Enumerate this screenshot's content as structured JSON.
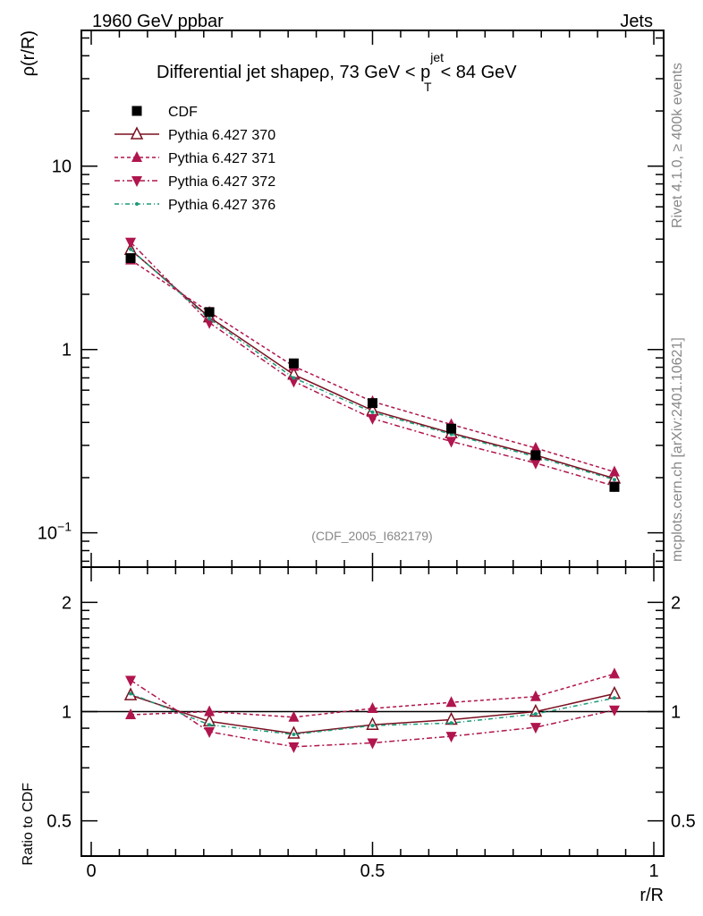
{
  "header": {
    "left": "1960 GeV ppbar",
    "right": "Jets"
  },
  "side_labels": {
    "rivet": "Rivet 4.1.0, ≥ 400k events",
    "mcplots": "mcplots.cern.ch [arXiv:2401.10621]"
  },
  "chart_data": {
    "type": "line",
    "title": {
      "prefix": "Differential jet shapeρ, 73 GeV < p",
      "sup": "jet",
      "sub": "T",
      "suffix": "< 84 GeV"
    },
    "xlabel": "r/R",
    "ylabel": "ρ(r/R)",
    "ratio_ylabel": "Ratio to CDF",
    "watermark": "(CDF_2005_I682179)",
    "xlim": [
      0,
      1
    ],
    "ylim": [
      0.065,
      55
    ],
    "ratio_ylim": [
      0.4,
      2.5
    ],
    "x_ticks": [
      {
        "v": 0,
        "label": "0"
      },
      {
        "v": 0.5,
        "label": "0.5"
      },
      {
        "v": 1,
        "label": "1"
      }
    ],
    "y_ticks": [
      {
        "v": 0.1,
        "base": "10",
        "exp": "−1"
      },
      {
        "v": 1,
        "base": "1",
        "exp": ""
      },
      {
        "v": 10,
        "base": "10",
        "exp": ""
      }
    ],
    "ratio_ticks": [
      {
        "v": 0.5,
        "label": "0.5"
      },
      {
        "v": 1,
        "label": "1"
      },
      {
        "v": 2,
        "label": "2"
      }
    ],
    "x": [
      0.07,
      0.21,
      0.36,
      0.5,
      0.64,
      0.79,
      0.93
    ],
    "series": [
      {
        "name": "CDF",
        "color": "#000000",
        "marker": "square",
        "dash": "none",
        "values": [
          3.15,
          1.6,
          0.84,
          0.51,
          0.37,
          0.265,
          0.178
        ]
      },
      {
        "name": "Pythia 6.427 370",
        "color": "#7b1020",
        "marker": "triangle-up-open",
        "dash": "solid",
        "values": [
          3.5,
          1.5,
          0.73,
          0.465,
          0.35,
          0.265,
          0.198
        ],
        "ratio": [
          1.11,
          0.94,
          0.87,
          0.92,
          0.95,
          1.0,
          1.12
        ]
      },
      {
        "name": "Pythia 6.427 371",
        "color": "#b0154d",
        "marker": "triangle-up",
        "dash": "4,3",
        "values": [
          3.08,
          1.6,
          0.81,
          0.52,
          0.39,
          0.29,
          0.215
        ],
        "ratio": [
          0.98,
          1.0,
          0.965,
          1.02,
          1.06,
          1.1,
          1.27
        ]
      },
      {
        "name": "Pythia 6.427 372",
        "color": "#b0154d",
        "marker": "triangle-down",
        "dash": "6,3,2,3",
        "values": [
          3.85,
          1.4,
          0.67,
          0.42,
          0.315,
          0.24,
          0.18
        ],
        "ratio": [
          1.22,
          0.88,
          0.8,
          0.82,
          0.855,
          0.905,
          1.01
        ]
      },
      {
        "name": "Pythia 6.427 376",
        "color": "#1a9a7a",
        "marker": "dot",
        "dash": "5,3,1,3",
        "values": [
          3.52,
          1.47,
          0.7,
          0.455,
          0.345,
          0.26,
          0.195
        ],
        "ratio": [
          1.12,
          0.92,
          0.865,
          0.915,
          0.93,
          0.985,
          1.09
        ]
      }
    ]
  }
}
